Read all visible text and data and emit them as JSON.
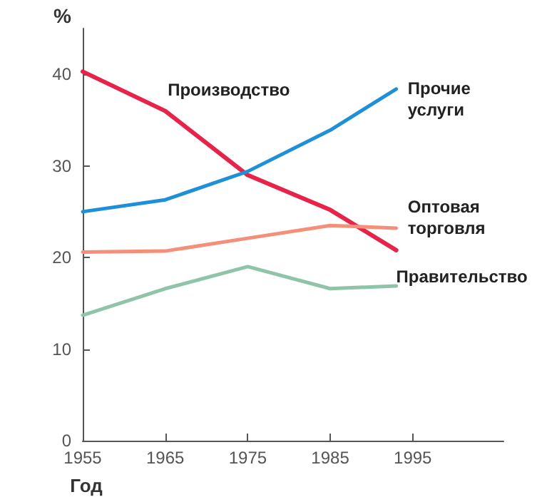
{
  "chart_data": {
    "type": "line",
    "xlabel": "Год",
    "ylabel": "%",
    "x": [
      1955,
      1965,
      1975,
      1985,
      1993
    ],
    "series": [
      {
        "name": "Производство",
        "color": "#e8234a",
        "values": [
          40.3,
          36.0,
          29.0,
          25.2,
          20.8
        ]
      },
      {
        "name": "Прочие услуги",
        "color": "#1e90d8",
        "values": [
          25.0,
          26.3,
          29.4,
          33.9,
          38.4
        ]
      },
      {
        "name": "Оптовая торговля",
        "color": "#f4907a",
        "values": [
          20.6,
          20.7,
          22.1,
          23.5,
          23.2
        ]
      },
      {
        "name": "Правительство",
        "color": "#8fc4a8",
        "values": [
          13.7,
          16.6,
          19.0,
          16.6,
          16.9
        ]
      }
    ],
    "xlim": [
      1955,
      2006
    ],
    "xticks": [
      1955,
      1965,
      1975,
      1985,
      1995
    ],
    "ylim": [
      0,
      45
    ],
    "yticks": [
      0,
      10,
      20,
      30,
      40
    ],
    "grid": false,
    "legend": false,
    "marker": "none",
    "line_style": "solid"
  }
}
